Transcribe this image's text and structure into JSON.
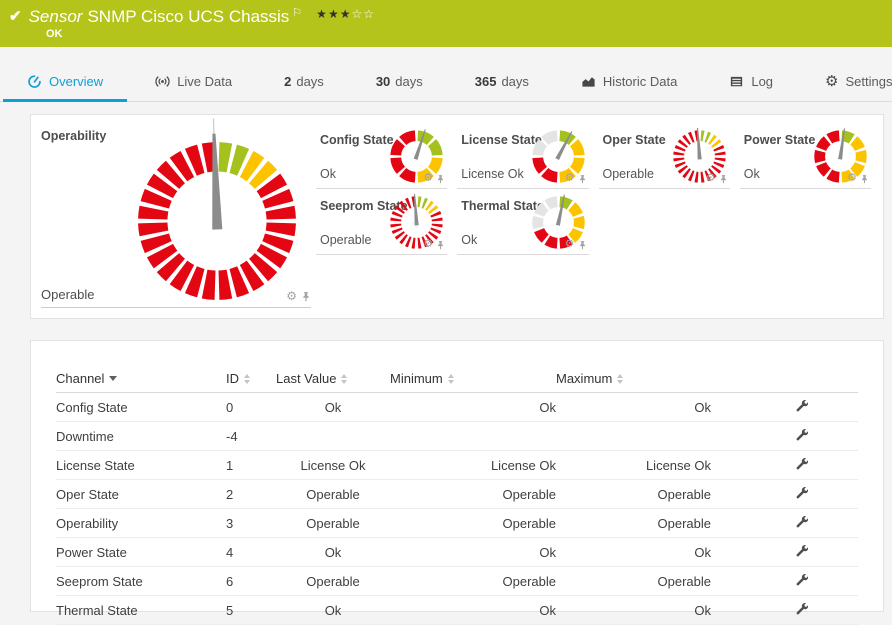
{
  "colors": {
    "header_bg": "#b5c41b",
    "accent": "#0ba1d8",
    "seg_red": "#e30613",
    "seg_green": "#a4c11d",
    "seg_yellow": "#fcc300",
    "seg_grey": "#e4e4e4",
    "needle": "#8c8c8c"
  },
  "icons": {
    "gear_glyph": "⚙"
  },
  "header": {
    "check_icon": "✔",
    "sensor_label": "Sensor",
    "title": "SNMP Cisco UCS Chassis",
    "flag_icon": "⚐",
    "rating_filled": 3,
    "rating_total": 5,
    "status": "OK"
  },
  "tabs": [
    {
      "id": "overview",
      "label": "Overview",
      "icon": "gauge-icon",
      "active": true
    },
    {
      "id": "live-data",
      "label": "Live Data",
      "icon": "live-icon"
    },
    {
      "id": "2-days",
      "num": "2",
      "label": "days"
    },
    {
      "id": "30-days",
      "num": "30",
      "label": "days"
    },
    {
      "id": "365-days",
      "num": "365",
      "label": "days"
    },
    {
      "id": "historic-data",
      "label": "Historic Data",
      "icon": "historic-icon"
    },
    {
      "id": "log",
      "label": "Log",
      "icon": "log-icon"
    },
    {
      "id": "settings",
      "label": "Settings",
      "icon": "gear-icon"
    }
  ],
  "gauges": {
    "main": {
      "title": "Operability",
      "value": "Operable",
      "segments": "ggyyrrrrrrrrrrrrrrrrrrrrrrrr",
      "needle_deg": -2
    },
    "small": [
      {
        "title": "Config State",
        "value": "Ok",
        "segments": "ggyyrrrr",
        "needle_deg": 18
      },
      {
        "title": "License State",
        "value": "License Ok",
        "segments": "gyyyrree",
        "needle_deg": 28
      },
      {
        "title": "Oper State",
        "value": "Operable",
        "segments": "ggyyrrrrrrrrrrrrrrrrrrrr",
        "needle_deg": -4
      },
      {
        "title": "Power State",
        "value": "Ok",
        "segments": "gyyyyrrrrr",
        "needle_deg": 8
      },
      {
        "title": "Seeprom State",
        "value": "Operable",
        "segments": "ggyyrrrrrrrrrrrrrrrrrrrr",
        "needle_deg": -4
      },
      {
        "title": "Thermal State",
        "value": "Ok",
        "segments": "gyyyrrreee",
        "needle_deg": 12
      }
    ]
  },
  "table": {
    "headers": [
      {
        "label": "Channel",
        "sort": "desc"
      },
      {
        "label": "ID",
        "sort": "both"
      },
      {
        "label": "Last Value",
        "sort": "both"
      },
      {
        "label": "Minimum",
        "sort": "both"
      },
      {
        "label": "Maximum",
        "sort": "both"
      }
    ],
    "rows": [
      {
        "channel": "Config State",
        "id": "0",
        "last": "Ok",
        "min": "Ok",
        "max": "Ok"
      },
      {
        "channel": "Downtime",
        "id": "-4",
        "last": "",
        "min": "",
        "max": ""
      },
      {
        "channel": "License State",
        "id": "1",
        "last": "License Ok",
        "min": "License Ok",
        "max": "License Ok"
      },
      {
        "channel": "Oper State",
        "id": "2",
        "last": "Operable",
        "min": "Operable",
        "max": "Operable"
      },
      {
        "channel": "Operability",
        "id": "3",
        "last": "Operable",
        "min": "Operable",
        "max": "Operable"
      },
      {
        "channel": "Power State",
        "id": "4",
        "last": "Ok",
        "min": "Ok",
        "max": "Ok"
      },
      {
        "channel": "Seeprom State",
        "id": "6",
        "last": "Operable",
        "min": "Operable",
        "max": "Operable"
      },
      {
        "channel": "Thermal State",
        "id": "5",
        "last": "Ok",
        "min": "Ok",
        "max": "Ok"
      }
    ]
  }
}
